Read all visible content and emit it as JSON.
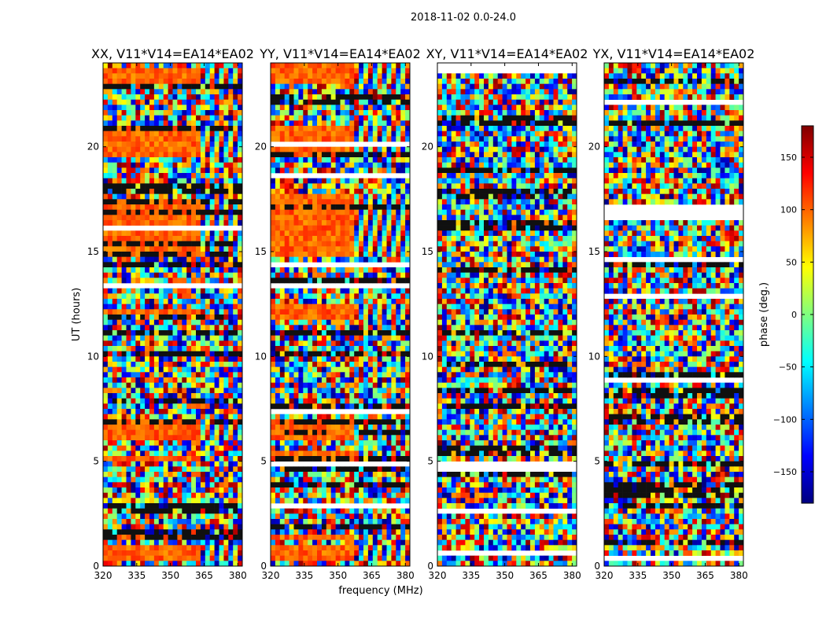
{
  "suptitle": "2018-11-02 0.0-24.0",
  "chart_data": [
    {
      "type": "heatmap",
      "title": "XX, V11*V14=EA14*EA02",
      "xlabel": "",
      "ylabel": "UT (hours)",
      "xlim": [
        320,
        382
      ],
      "ylim": [
        0,
        24
      ],
      "xticks": [
        "320",
        "335",
        "350",
        "365",
        "380"
      ],
      "yticks": [
        "0",
        "5",
        "10",
        "15",
        "20"
      ],
      "coherent_bands_hours": [
        [
          0.3,
          0.9
        ],
        [
          1.2,
          1.5
        ],
        [
          4.9,
          5.3
        ],
        [
          6.1,
          7.0
        ],
        [
          11.9,
          12.3
        ],
        [
          14.8,
          17.6
        ],
        [
          19.5,
          20.9
        ],
        [
          23.0,
          23.8
        ]
      ],
      "coherent_until_MHz": 363
    },
    {
      "type": "heatmap",
      "title": "YY, V11*V14=EA14*EA02",
      "xlabel": "frequency (MHz)",
      "ylabel": "",
      "xlim": [
        320,
        382
      ],
      "ylim": [
        0,
        24
      ],
      "xticks": [
        "320",
        "335",
        "350",
        "365",
        "380"
      ],
      "yticks": [
        "0",
        "5",
        "10",
        "15",
        "20"
      ],
      "coherent_bands_hours": [
        [
          0.2,
          1.0
        ],
        [
          1.2,
          1.6
        ],
        [
          4.8,
          5.4
        ],
        [
          6.0,
          7.1
        ],
        [
          11.8,
          12.4
        ],
        [
          14.7,
          17.8
        ],
        [
          19.4,
          21.1
        ],
        [
          23.0,
          23.9
        ]
      ],
      "coherent_until_MHz": 358
    },
    {
      "type": "heatmap",
      "title": "XY, V11*V14=EA14*EA02",
      "xlabel": "",
      "ylabel": "",
      "xlim": [
        320,
        382
      ],
      "ylim": [
        0,
        24
      ],
      "xticks": [
        "320",
        "335",
        "350",
        "365",
        "380"
      ],
      "yticks": [
        "0",
        "5",
        "10",
        "15",
        "20"
      ],
      "coherent_bands_hours": [],
      "coherent_until_MHz": 340
    },
    {
      "type": "heatmap",
      "title": "YX, V11*V14=EA14*EA02",
      "xlabel": "",
      "ylabel": "",
      "xlim": [
        320,
        382
      ],
      "ylim": [
        0,
        24
      ],
      "xticks": [
        "320",
        "335",
        "350",
        "365",
        "380"
      ],
      "yticks": [
        "0",
        "5",
        "10",
        "15",
        "20"
      ],
      "coherent_bands_hours": [],
      "coherent_until_MHz": 340
    }
  ],
  "colorbar": {
    "label": "phase (deg.)",
    "range": [
      -180,
      180
    ],
    "ticks": [
      "150",
      "100",
      "50",
      "0",
      "−50",
      "−100",
      "−150"
    ],
    "tick_values": [
      150,
      100,
      50,
      0,
      -50,
      -100,
      -150
    ],
    "colormap": "jet"
  },
  "colors": {
    "axes": "#000000",
    "background": "#ffffff"
  }
}
